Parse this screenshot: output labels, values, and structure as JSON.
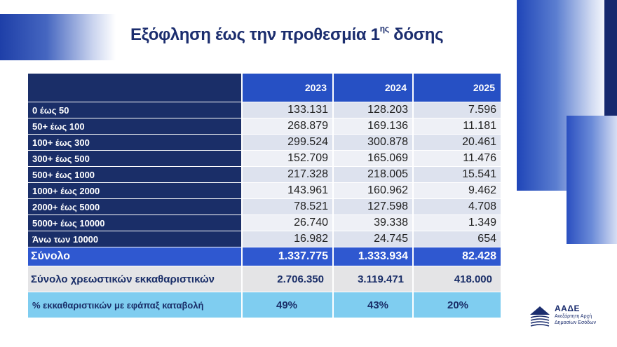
{
  "title": {
    "main": "Εξόφληση έως την προθεσμία 1",
    "sup": "ης",
    "end": " δόσης"
  },
  "columns": [
    "",
    "2023",
    "2024",
    "2025"
  ],
  "rows": [
    {
      "label": "0 έως 50",
      "values": [
        "133.131",
        "128.203",
        "7.596"
      ]
    },
    {
      "label": "50+ έως 100",
      "values": [
        "268.879",
        "169.136",
        "11.181"
      ]
    },
    {
      "label": "100+ έως 300",
      "values": [
        "299.524",
        "300.878",
        "20.461"
      ]
    },
    {
      "label": "300+ έως 500",
      "values": [
        "152.709",
        "165.069",
        "11.476"
      ]
    },
    {
      "label": "500+ έως 1000",
      "values": [
        "217.328",
        "218.005",
        "15.541"
      ]
    },
    {
      "label": "1000+ έως 2000",
      "values": [
        "143.961",
        "160.962",
        "9.462"
      ]
    },
    {
      "label": "2000+ έως 5000",
      "values": [
        "78.521",
        "127.598",
        "4.708"
      ]
    },
    {
      "label": "5000+ έως 10000",
      "values": [
        "26.740",
        "39.338",
        "1.349"
      ]
    },
    {
      "label": "Άνω   των  10000",
      "values": [
        "16.982",
        "24.745",
        "654"
      ]
    }
  ],
  "total": {
    "label": "Σύνολο",
    "values": [
      "1.337.775",
      "1.333.934",
      "82.428"
    ]
  },
  "liquidations": {
    "label": "Σύνολο χρεωστικών εκκαθαριστικών",
    "values": [
      "2.706.350",
      "3.119.471",
      "418.000"
    ]
  },
  "percent": {
    "label": "% εκκαθαριστικών με εφάπαξ καταβολή",
    "values": [
      "49%",
      "43%",
      "20%"
    ]
  },
  "logo": {
    "name": "ΑΑΔΕ",
    "subtitle": "Ανεξάρτητη Αρχή Δημοσίων Εσόδων"
  },
  "colors": {
    "navy": "#1a2e68",
    "blue": "#2f58d0",
    "light_blue": "#7fcdf0",
    "grey": "#e4e4e6"
  }
}
